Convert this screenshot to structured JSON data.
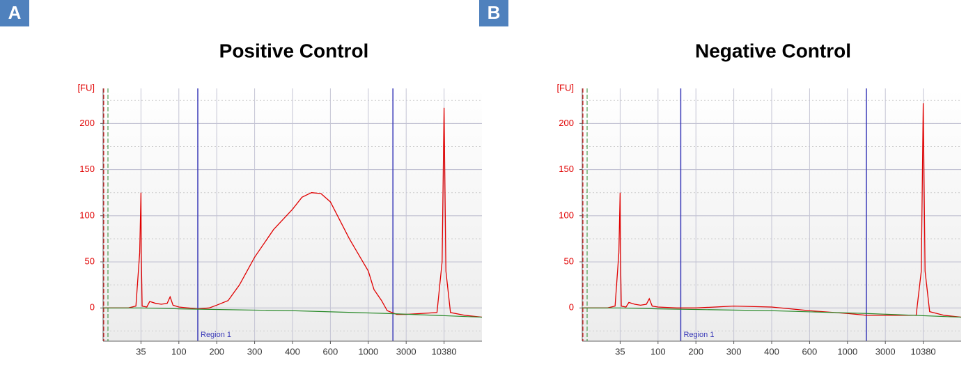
{
  "chart_data": [
    {
      "type": "line",
      "panel": "A",
      "title": "Positive Control",
      "y_label": "[FU]",
      "xlim": [
        20,
        17000
      ],
      "xticks": [
        35,
        100,
        200,
        300,
        400,
        600,
        1000,
        3000,
        10380
      ],
      "ylim": [
        -36,
        238
      ],
      "yticks": [
        0,
        50,
        100,
        150,
        200
      ],
      "grid": true,
      "markers": [
        150,
        2300
      ],
      "marker_label": "Region 1",
      "marker_color": "#3a3ab8",
      "series": [
        {
          "color": "#e00000",
          "x": [
            20,
            30,
            33,
            34.5,
            35,
            35.5,
            37,
            45,
            50,
            60,
            70,
            80,
            85,
            90,
            100,
            150,
            180,
            200,
            230,
            260,
            300,
            350,
            400,
            450,
            500,
            550,
            600,
            700,
            800,
            1000,
            1300,
            1700,
            2000,
            2500,
            3000,
            6000,
            9000,
            10000,
            10380,
            10700,
            11500,
            14000,
            17000
          ],
          "values": [
            0,
            0,
            2,
            60,
            125,
            60,
            2,
            1,
            7,
            5,
            4,
            5,
            12,
            3,
            1,
            -1,
            0,
            3,
            8,
            25,
            55,
            85,
            107,
            120,
            125,
            124,
            115,
            95,
            75,
            40,
            20,
            8,
            -3,
            -7,
            -7,
            -6,
            -5,
            50,
            217,
            40,
            -5,
            -8,
            -10
          ]
        },
        {
          "color": "#2a8a2a",
          "x": [
            20,
            35,
            100,
            400,
            2000,
            17000
          ],
          "values": [
            0,
            0,
            -1,
            -3,
            -6,
            -10
          ]
        }
      ]
    },
    {
      "type": "line",
      "panel": "B",
      "title": "Negative Control",
      "y_label": "[FU]",
      "xlim": [
        20,
        17000
      ],
      "xticks": [
        35,
        100,
        200,
        300,
        400,
        600,
        1000,
        3000,
        10380
      ],
      "ylim": [
        -36,
        238
      ],
      "yticks": [
        0,
        50,
        100,
        150,
        200
      ],
      "grid": true,
      "markers": [
        160,
        2000
      ],
      "marker_label": "Region 1",
      "marker_color": "#3a3ab8",
      "series": [
        {
          "color": "#e00000",
          "x": [
            20,
            30,
            33,
            34.5,
            35,
            35.5,
            37,
            45,
            50,
            60,
            70,
            80,
            85,
            90,
            100,
            150,
            200,
            250,
            300,
            400,
            600,
            1000,
            2000,
            3000,
            6000,
            9000,
            10000,
            10380,
            10700,
            11500,
            14000,
            17000
          ],
          "values": [
            0,
            0,
            2,
            60,
            125,
            60,
            2,
            1,
            6,
            4,
            3,
            4,
            10,
            2,
            1,
            0,
            0,
            1,
            2,
            1,
            -3,
            -6,
            -8,
            -8,
            -8,
            -8,
            40,
            222,
            40,
            -4,
            -8,
            -10
          ]
        },
        {
          "color": "#2a8a2a",
          "x": [
            20,
            35,
            100,
            400,
            2000,
            17000
          ],
          "values": [
            0,
            0,
            -1,
            -3,
            -6,
            -10
          ]
        }
      ]
    }
  ]
}
